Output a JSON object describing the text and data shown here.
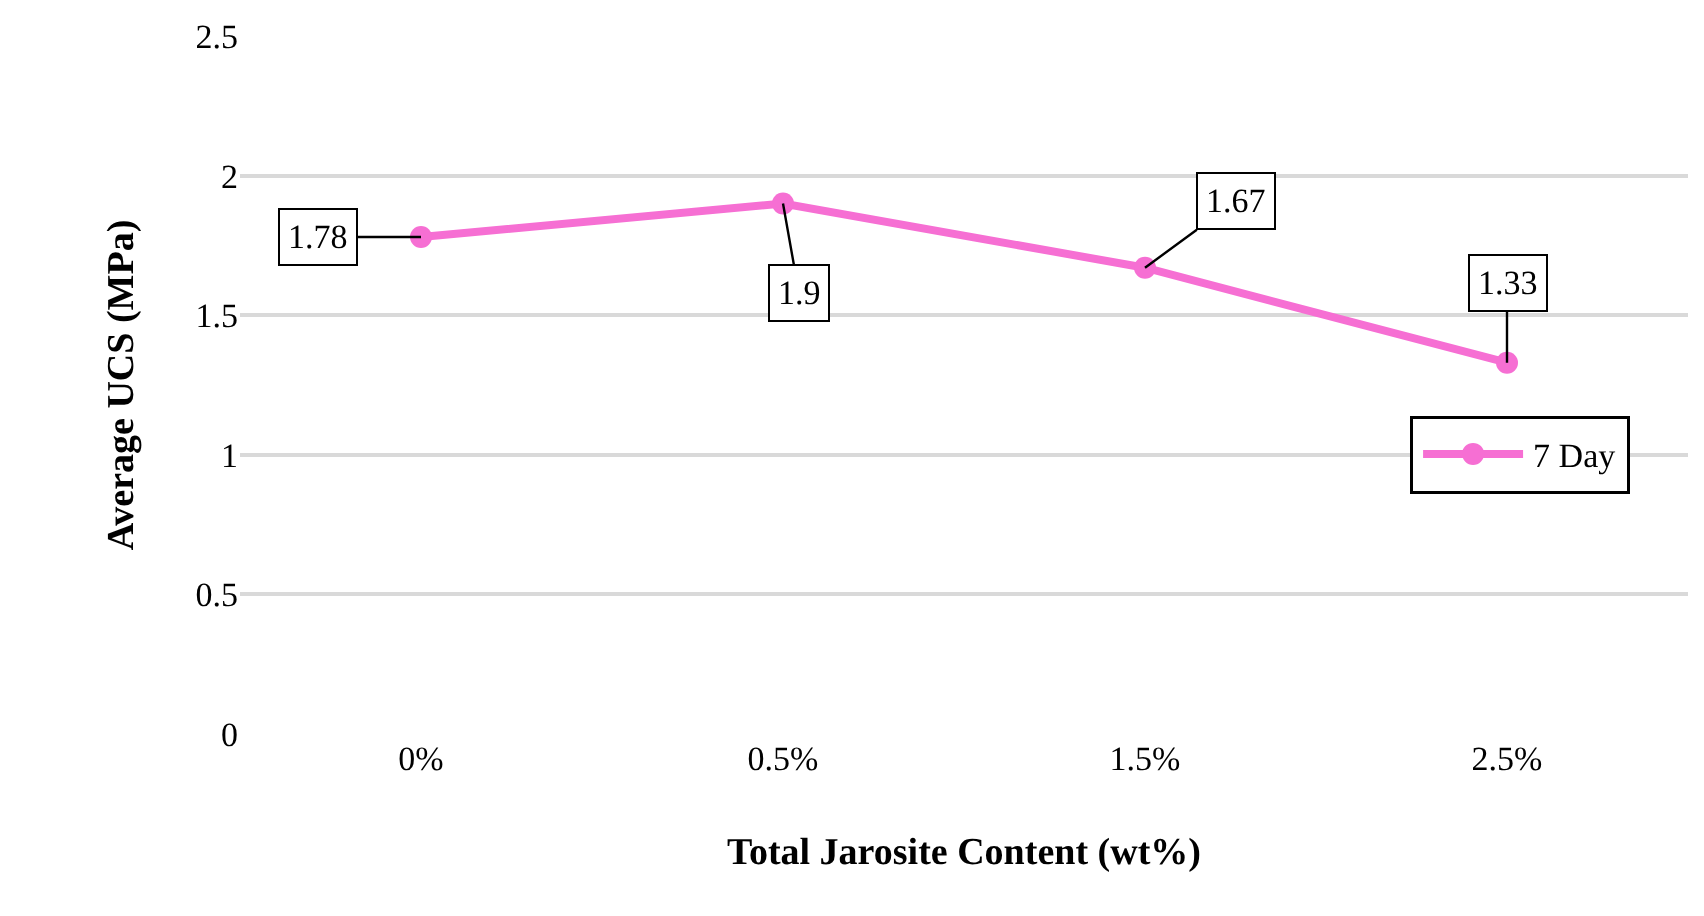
{
  "chart_data": {
    "type": "line",
    "xlabel": "Total Jarosite Content (wt%)",
    "ylabel": "Average UCS (MPa)",
    "categories": [
      "0%",
      "0.5%",
      "1.5%",
      "2.5%"
    ],
    "series": [
      {
        "name": "7 Day",
        "color": "#f66fd3",
        "values": [
          1.78,
          1.9,
          1.67,
          1.33
        ]
      }
    ],
    "ylim": [
      0,
      2.5
    ],
    "yticks": [
      0,
      0.5,
      1,
      1.5,
      2,
      2.5
    ],
    "grid": "y",
    "legend": "right",
    "marker": "circle",
    "line_style": "solid",
    "data_labels": true
  }
}
